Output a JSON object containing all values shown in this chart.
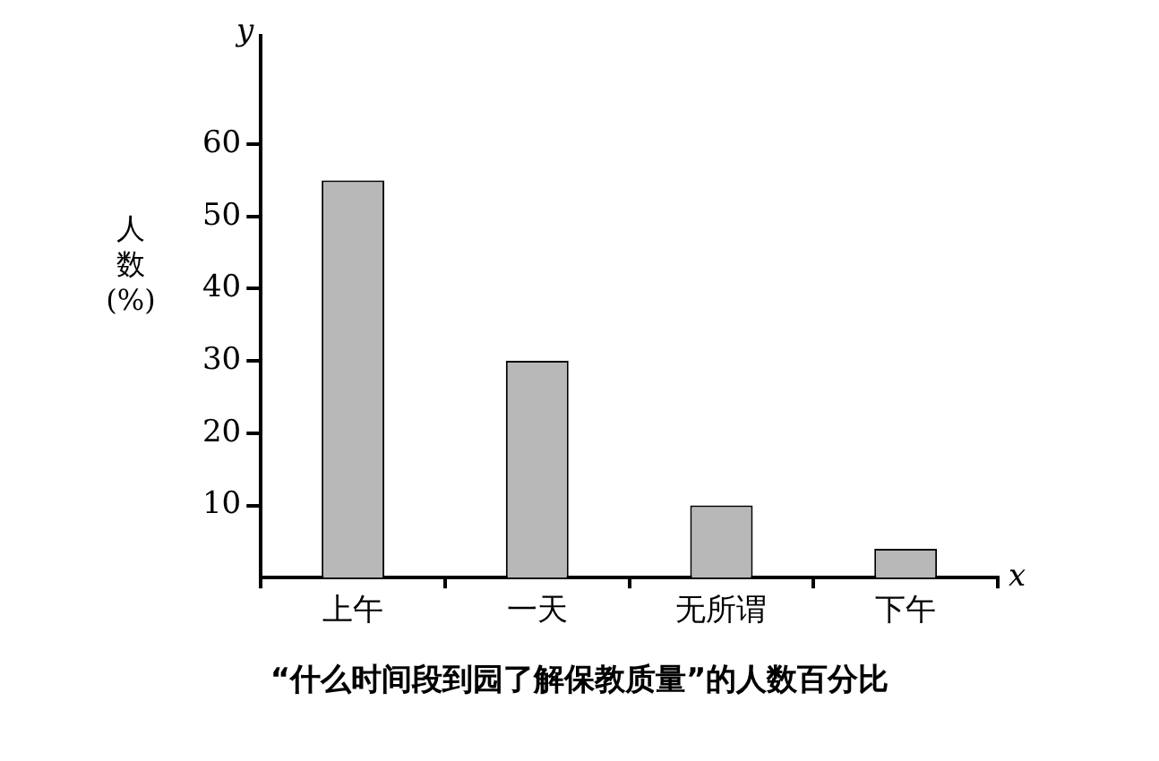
{
  "chart_data": {
    "type": "bar",
    "title": "“什么时间段到园了解保教质量”的人数百分比",
    "xlabel": "x",
    "ylabel": "人数(%)",
    "annotations": [
      "y"
    ],
    "categories": [
      "上午",
      "一天",
      "无所谓",
      "下午"
    ],
    "values": [
      55,
      30,
      10,
      4
    ],
    "color": "#b8b8b8",
    "ylim": [
      0,
      75
    ],
    "yticks": [
      10,
      20,
      30,
      40,
      50,
      60
    ],
    "grid": false,
    "legend": false
  }
}
